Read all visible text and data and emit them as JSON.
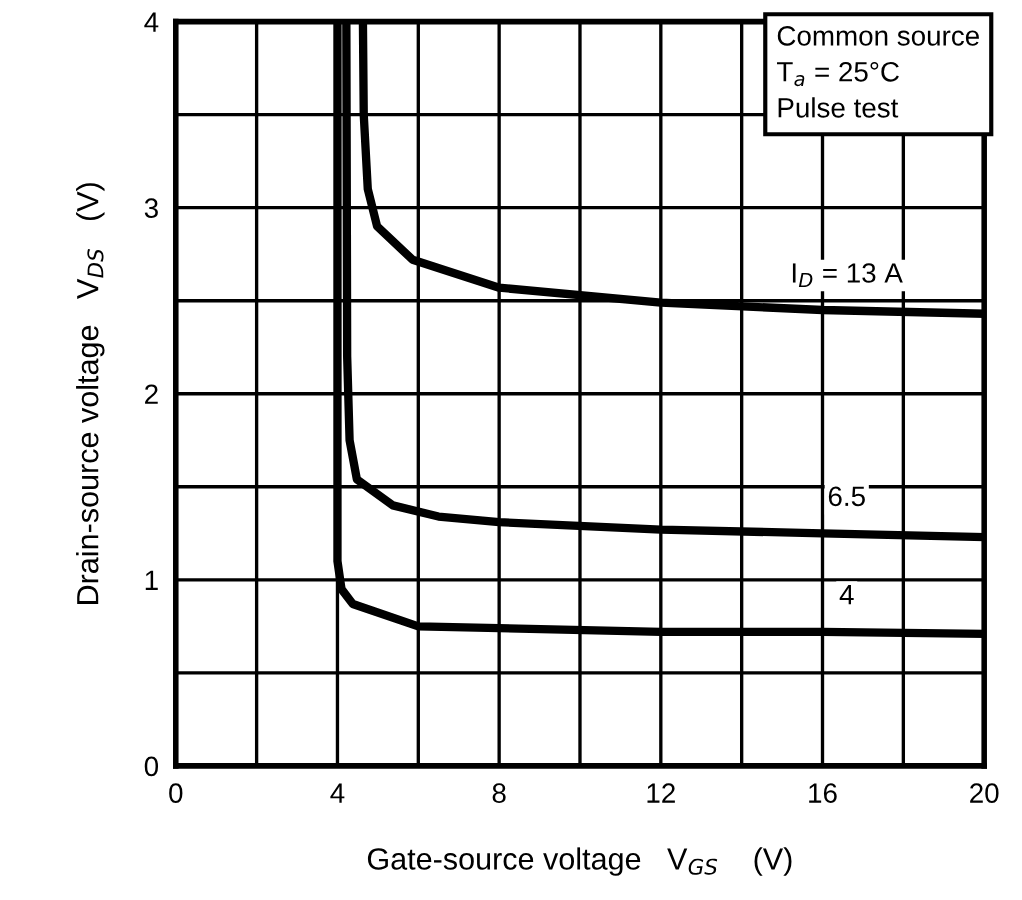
{
  "chart_data": {
    "type": "line",
    "xlabel": "Gate-source voltage   V$_{GS}$    (V)",
    "ylabel": "Drain-source voltage   V$_{DS}$   (V)",
    "series": [
      {
        "name": "I$_{D}$ = 13 A",
        "color": "#000000",
        "x": [
          4.63,
          4.65,
          4.75,
          4.98,
          5.86,
          8,
          12,
          16,
          20
        ],
        "values": [
          4,
          3.5,
          3.1,
          2.9,
          2.72,
          2.57,
          2.49,
          2.45,
          2.43
        ]
      },
      {
        "name": "6.5",
        "color": "#000000",
        "x": [
          4.22,
          4.24,
          4.3,
          4.48,
          5.37,
          6.5,
          8,
          12,
          16,
          20
        ],
        "values": [
          4,
          2.2,
          1.75,
          1.54,
          1.4,
          1.34,
          1.31,
          1.27,
          1.25,
          1.23
        ]
      },
      {
        "name": "4",
        "color": "#000000",
        "x": [
          4.0,
          4.0,
          4.1,
          4.38,
          6,
          8,
          12,
          16,
          20
        ],
        "values": [
          4,
          1.1,
          0.95,
          0.87,
          0.75,
          0.74,
          0.72,
          0.72,
          0.71
        ]
      }
    ],
    "xlim": [
      0,
      20
    ],
    "ylim": [
      0,
      4
    ],
    "xticks": [
      0,
      {
        "value": 2,
        "label": null
      },
      4,
      {
        "value": 6,
        "label": null
      },
      8,
      {
        "value": 10,
        "label": null
      },
      12,
      {
        "value": 14,
        "label": null
      },
      16,
      {
        "value": 18,
        "label": null
      },
      20
    ],
    "yticks": [
      0,
      {
        "value": 0.5,
        "label": null
      },
      1,
      {
        "value": 1.5,
        "label": null
      },
      2,
      {
        "value": 2.5,
        "label": null
      },
      3,
      {
        "value": 3.5,
        "label": null
      },
      4
    ],
    "grid": true,
    "line_style": "solid",
    "marker": "none",
    "annotations": [
      "Common source\nT$_{a}$ = 25°C\nPulse test"
    ]
  }
}
